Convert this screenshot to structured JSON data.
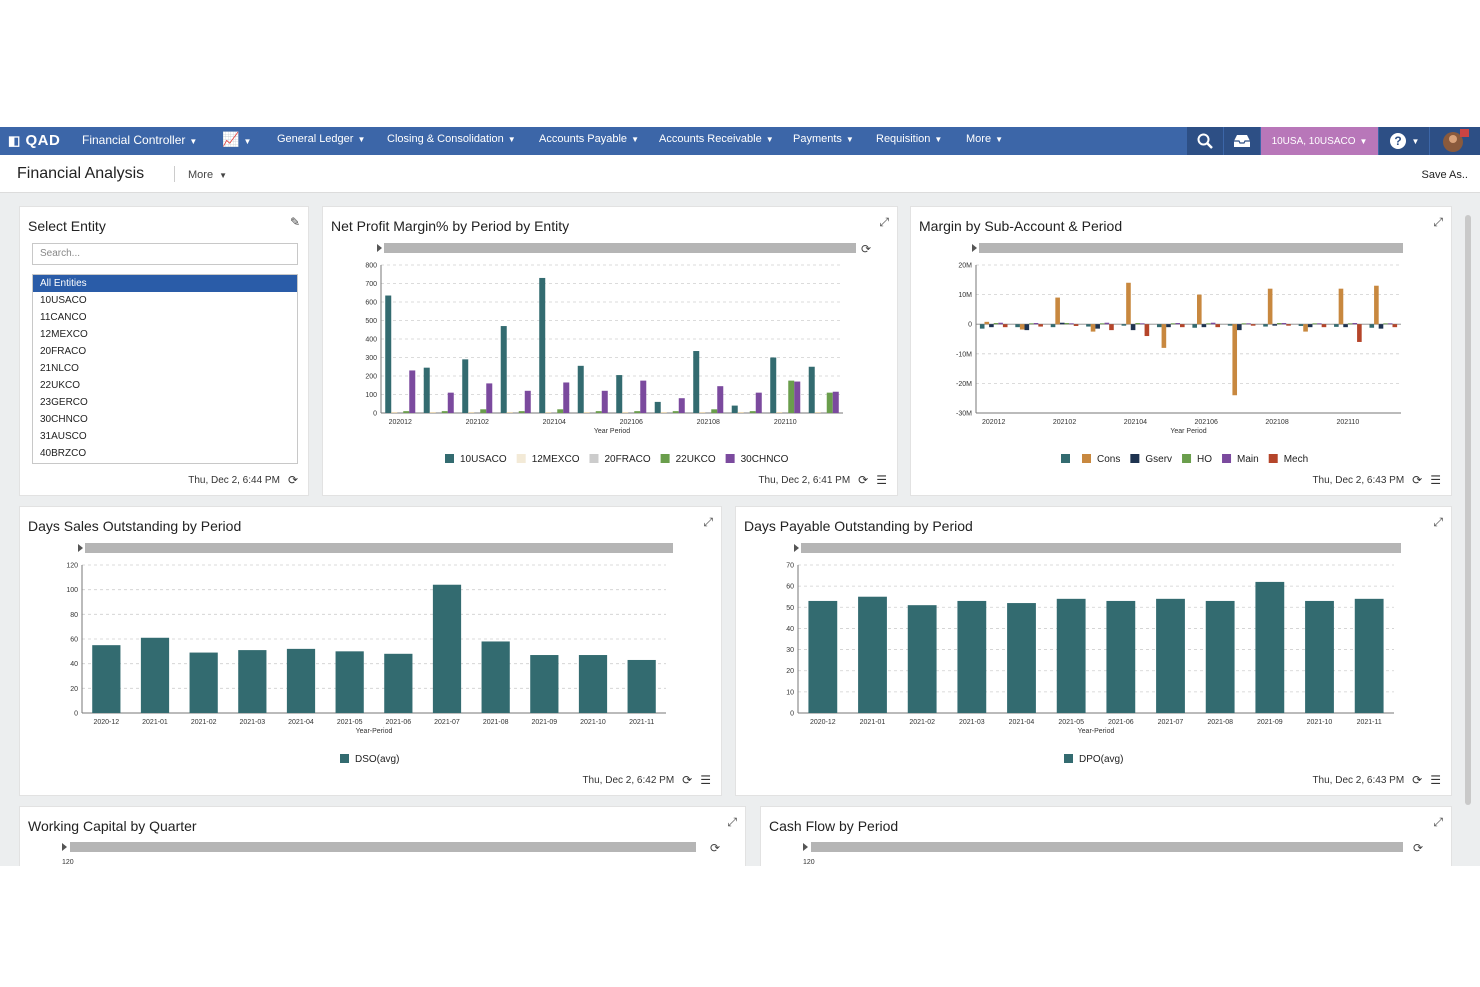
{
  "nav": {
    "logo": "QAD",
    "role": "Financial Controller",
    "menu": [
      "General Ledger",
      "Closing & Consolidation",
      "Accounts Payable",
      "Accounts Receivable",
      "Payments",
      "Requisition",
      "More"
    ],
    "entity_selector": "10USA, 10USACO"
  },
  "page": {
    "title": "Financial Analysis",
    "more": "More",
    "save_as": "Save As.."
  },
  "entity_panel": {
    "title": "Select Entity",
    "search_placeholder": "Search...",
    "items": [
      "All Entities",
      "10USACO",
      "11CANCO",
      "12MEXCO",
      "20FRACO",
      "21NLCO",
      "22UKCO",
      "23GERCO",
      "30CHNCO",
      "31AUSCO",
      "40BRZCO"
    ],
    "selected": "All Entities",
    "timestamp": "Thu, Dec 2, 6:44 PM"
  },
  "colors": {
    "teal": "#336b70",
    "purple": "#7b4a9e",
    "green": "#6a9e4c",
    "tan": "#e8d5b0",
    "gray": "#9a9a9a",
    "orange": "#c8883f",
    "navy": "#1e3350",
    "crimson": "#b5452a",
    "nav": "#3c66a8",
    "entity": "#b877b9"
  },
  "charts": {
    "npm": {
      "title": "Net Profit Margin% by Period by Entity",
      "timestamp": "Thu, Dec 2, 6:41 PM",
      "chart_data": {
        "type": "bar",
        "categories": [
          "202012",
          "202101",
          "202102",
          "202103",
          "202104",
          "202105",
          "202106",
          "202107",
          "202108",
          "202109",
          "202110",
          "202111"
        ],
        "xtick_labels": [
          "202012",
          "202102",
          "202104",
          "202106",
          "202108",
          "202110"
        ],
        "xlabel": "Year Period",
        "ylim": [
          0,
          800
        ],
        "yticks": [
          0,
          100,
          200,
          300,
          400,
          500,
          600,
          700,
          800
        ],
        "series": [
          {
            "name": "10USACO",
            "color": "#336b70",
            "values": [
              635,
              245,
              290,
              470,
              730,
              255,
              205,
              60,
              335,
              40,
              300,
              250
            ]
          },
          {
            "name": "12MEXCO",
            "color": "#e8d5b0",
            "values": [
              5,
              5,
              5,
              5,
              5,
              5,
              5,
              5,
              5,
              5,
              5,
              5
            ]
          },
          {
            "name": "20FRACO",
            "color": "#9a9a9a",
            "values": [
              0,
              0,
              0,
              0,
              0,
              0,
              0,
              0,
              0,
              0,
              0,
              0
            ]
          },
          {
            "name": "22UKCO",
            "color": "#6a9e4c",
            "values": [
              10,
              10,
              20,
              10,
              20,
              10,
              10,
              10,
              20,
              10,
              175,
              110
            ]
          },
          {
            "name": "30CHNCO",
            "color": "#7b4a9e",
            "values": [
              230,
              110,
              160,
              120,
              165,
              120,
              175,
              80,
              145,
              110,
              170,
              115
            ]
          }
        ],
        "legend_dim": [
          "12MEXCO",
          "20FRACO"
        ]
      }
    },
    "margin": {
      "title": "Margin by Sub-Account & Period",
      "timestamp": "Thu, Dec 2, 6:43 PM",
      "chart_data": {
        "type": "bar",
        "categories": [
          "202012",
          "202101",
          "202102",
          "202103",
          "202104",
          "202105",
          "202106",
          "202107",
          "202108",
          "202109",
          "202110",
          "202111"
        ],
        "xtick_labels": [
          "202012",
          "202102",
          "202104",
          "202106",
          "202108",
          "202110"
        ],
        "xlabel": "Year Period",
        "ylim": [
          -30,
          20
        ],
        "yticks": [
          -30,
          -20,
          -10,
          0,
          10,
          20
        ],
        "ytick_labels": [
          "-30M",
          "-20M",
          "-10M",
          "0",
          "10M",
          "20M"
        ],
        "series": [
          {
            "name": "",
            "color": "#336b70",
            "values": [
              -1.5,
              -1,
              -1,
              -0.8,
              -0.5,
              -1,
              -1.2,
              -0.5,
              -0.8,
              -0.6,
              -0.9,
              -1.2
            ]
          },
          {
            "name": "Cons",
            "color": "#c8883f",
            "values": [
              0.8,
              -1.8,
              9,
              -2.5,
              14,
              -8,
              10,
              -24,
              12,
              -2.5,
              12,
              13
            ]
          },
          {
            "name": "Gserv",
            "color": "#1e3350",
            "values": [
              -1,
              -2,
              0.5,
              -1.5,
              -2,
              -1,
              -1,
              -2,
              -0.5,
              -1,
              -1,
              -1.5
            ]
          },
          {
            "name": "HO",
            "color": "#6a9e4c",
            "values": [
              0.4,
              0.3,
              0.4,
              0.3,
              0.4,
              0.3,
              0.3,
              0.3,
              0.4,
              0.3,
              0.3,
              0.3
            ]
          },
          {
            "name": "Main",
            "color": "#7b4a9e",
            "values": [
              0.5,
              0.4,
              0.3,
              0.5,
              0.3,
              0.4,
              0.5,
              0.3,
              0.4,
              0.3,
              0.4,
              0.3
            ]
          },
          {
            "name": "Mech",
            "color": "#b5452a",
            "values": [
              -1,
              -0.8,
              -0.6,
              -2,
              -4,
              -1,
              -1,
              -0.5,
              -0.5,
              -1,
              -6,
              -1
            ]
          }
        ]
      }
    },
    "dso": {
      "title": "Days Sales Outstanding by Period",
      "timestamp": "Thu, Dec 2, 6:42 PM",
      "chart_data": {
        "type": "bar",
        "categories": [
          "2020-12",
          "2021-01",
          "2021-02",
          "2021-03",
          "2021-04",
          "2021-05",
          "2021-06",
          "2021-07",
          "2021-08",
          "2021-09",
          "2021-10",
          "2021-11"
        ],
        "xlabel": "Year-Period",
        "ylim": [
          0,
          120
        ],
        "yticks": [
          0,
          20,
          40,
          60,
          80,
          100,
          120
        ],
        "series": [
          {
            "name": "DSO(avg)",
            "color": "#336b70",
            "values": [
              55,
              61,
              49,
              51,
              52,
              50,
              48,
              104,
              58,
              47,
              47,
              43
            ]
          }
        ]
      }
    },
    "dpo": {
      "title": "Days Payable Outstanding by Period",
      "timestamp": "Thu, Dec 2, 6:43 PM",
      "chart_data": {
        "type": "bar",
        "categories": [
          "2020-12",
          "2021-01",
          "2021-02",
          "2021-03",
          "2021-04",
          "2021-05",
          "2021-06",
          "2021-07",
          "2021-08",
          "2021-09",
          "2021-10",
          "2021-11"
        ],
        "xlabel": "Year-Period",
        "ylim": [
          0,
          70
        ],
        "yticks": [
          0,
          10,
          20,
          30,
          40,
          50,
          60,
          70
        ],
        "series": [
          {
            "name": "DPO(avg)",
            "color": "#336b70",
            "values": [
              53,
              55,
              51,
              53,
              52,
              54,
              53,
              54,
              53,
              62,
              53,
              54
            ]
          }
        ]
      }
    },
    "wc": {
      "title": "Working Capital by Quarter",
      "chart_data": {
        "type": "bar",
        "ytick_labels": [
          "120"
        ]
      }
    },
    "cf": {
      "title": "Cash Flow by Period",
      "chart_data": {
        "type": "bar",
        "ytick_labels": [
          "120"
        ]
      }
    }
  }
}
